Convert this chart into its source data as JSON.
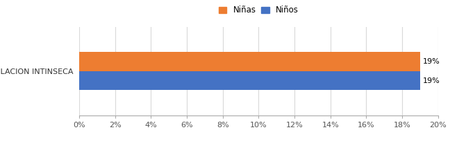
{
  "categories": [
    "REGULACION INTINSECA"
  ],
  "series": [
    {
      "label": "Niñas",
      "values": [
        0.19
      ],
      "color": "#ED7D31"
    },
    {
      "label": "Niños",
      "values": [
        0.19
      ],
      "color": "#4472C4"
    }
  ],
  "xlim": [
    0,
    0.2
  ],
  "xtick_values": [
    0.0,
    0.02,
    0.04,
    0.06,
    0.08,
    0.1,
    0.12,
    0.14,
    0.16,
    0.18,
    0.2
  ],
  "xtick_labels": [
    "0%",
    "2%",
    "4%",
    "6%",
    "8%",
    "10%",
    "12%",
    "14%",
    "16%",
    "18%",
    "20%"
  ],
  "bar_height": 0.28,
  "value_label_fontsize": 8,
  "tick_fontsize": 8,
  "legend_fontsize": 8.5,
  "background_color": "#FFFFFF",
  "grid_color": "#D9D9D9"
}
